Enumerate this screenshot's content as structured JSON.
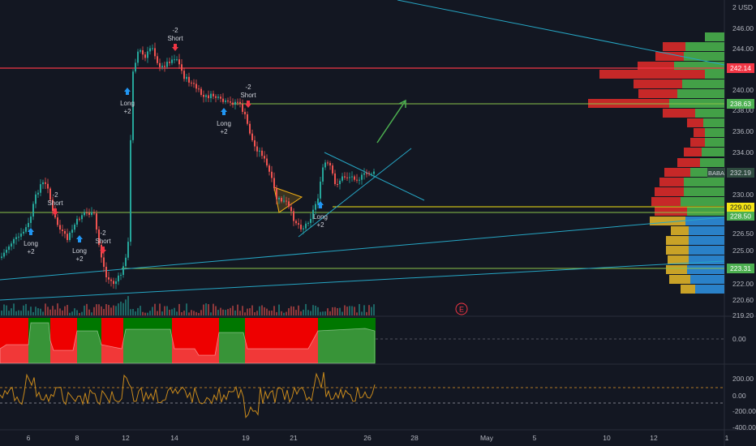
{
  "symbol": "BABA",
  "currency": "2 USD",
  "price_axis": {
    "ticks": [
      "246.00",
      "244.00",
      "240.00",
      "238.00",
      "236.00",
      "234.00",
      "230.00",
      "226.50",
      "225.00",
      "222.00",
      "220.60",
      "219.20"
    ],
    "badges": {
      "red_line": "242.14",
      "green_line_upper": "238.63",
      "last": "232.19",
      "yellow_line": "229.00",
      "green_line_mid": "228.50",
      "green_line_low": "223.31"
    },
    "colors": {
      "red": "#f23645",
      "green": "#22ab94",
      "last_bg": "#2a3a33",
      "yellow": "#f5e414",
      "text": "#b2b5be"
    }
  },
  "indicator1_axis": {
    "ticks": [
      "0.00"
    ]
  },
  "indicator2_axis": {
    "ticks": [
      "200.00",
      "0.00",
      "-200.00",
      "-400.00"
    ]
  },
  "time_axis": {
    "labels": [
      "6",
      "8",
      "12",
      "14",
      "19",
      "21",
      "26",
      "28",
      "May",
      "5",
      "10",
      "12",
      "1"
    ]
  },
  "annotations": {
    "signals": [
      {
        "id": "s1",
        "line1": "-2",
        "line2": "Short"
      },
      {
        "id": "s2",
        "line1": "Long",
        "line2": "+2"
      },
      {
        "id": "s3",
        "line1": "-2",
        "line2": "Short"
      },
      {
        "id": "s4",
        "line1": "Long",
        "line2": "+2"
      },
      {
        "id": "s5",
        "line1": "-2",
        "line2": "Short"
      },
      {
        "id": "s6",
        "line1": "Long",
        "line2": "+2"
      },
      {
        "id": "s7",
        "line1": "-2",
        "line2": "Short"
      },
      {
        "id": "s8",
        "line1": "Long",
        "line2": "+2"
      },
      {
        "id": "s9",
        "line1": "Long",
        "line2": "+2"
      }
    ],
    "earnings_marker": "E"
  }
}
